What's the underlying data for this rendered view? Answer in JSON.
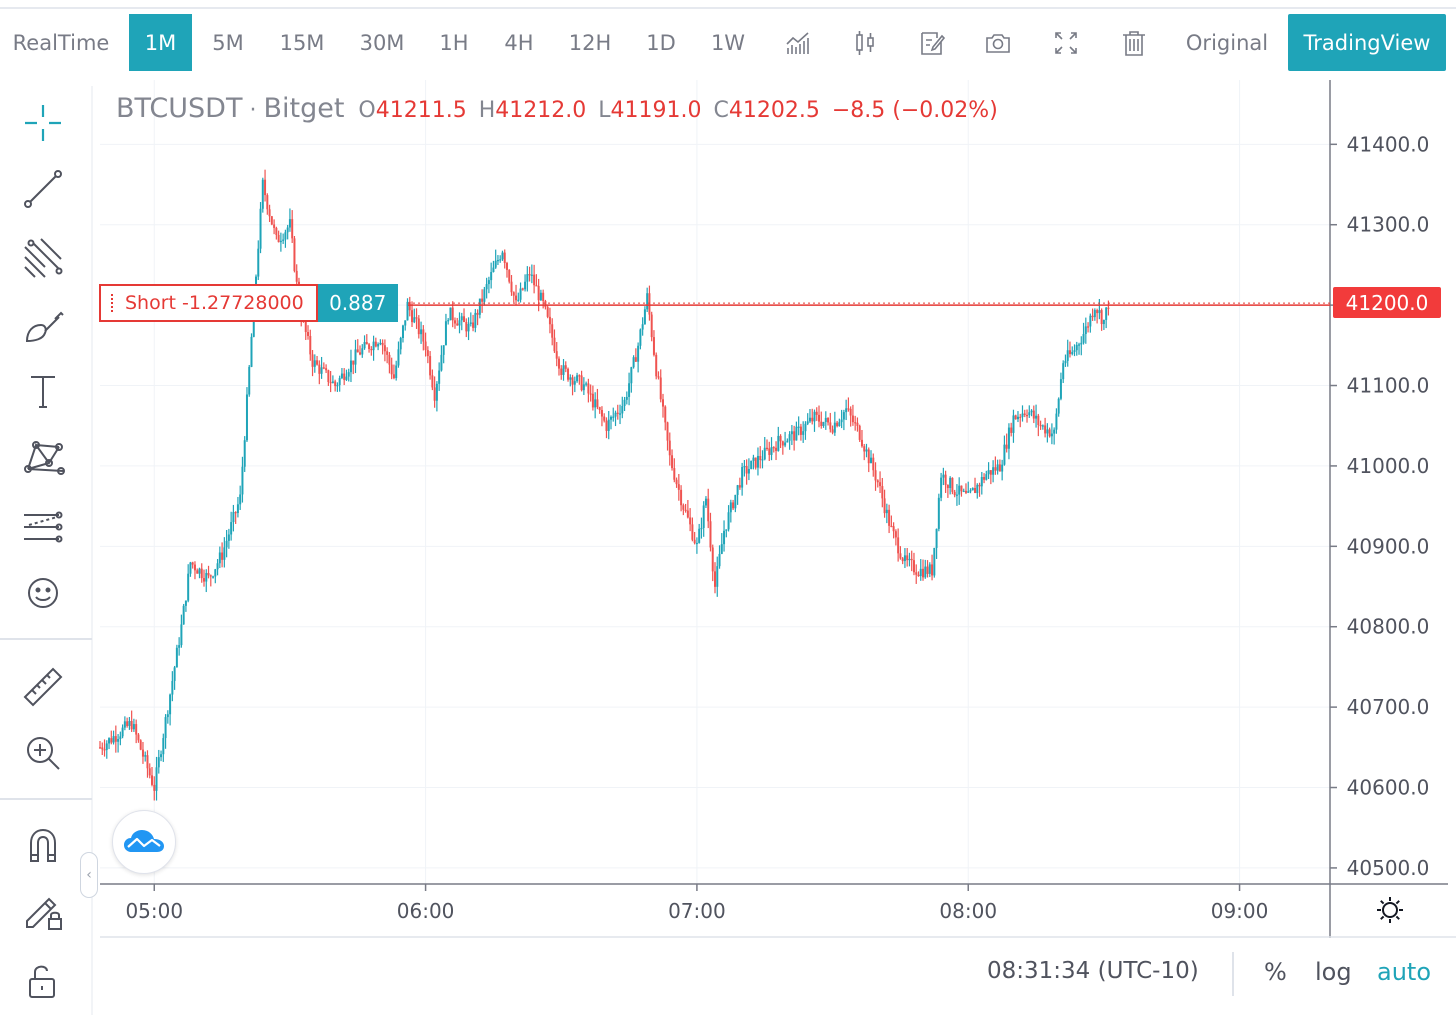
{
  "toolbar": {
    "realtime": "RealTime",
    "intervals": [
      "1M",
      "5M",
      "15M",
      "30M",
      "1H",
      "4H",
      "12H",
      "1D",
      "1W"
    ],
    "active_interval": "1M",
    "original": "Original",
    "tradingview": "TradingView",
    "icons": [
      "indicators-icon",
      "candle-style-icon",
      "drawing-edit-icon",
      "camera-icon",
      "fullscreen-icon",
      "trash-icon"
    ]
  },
  "sidebar": {
    "tools": [
      "crosshair-icon",
      "trend-line-icon",
      "fib-icon",
      "brush-icon",
      "text-icon",
      "pattern-icon",
      "prediction-icon",
      "emoji-icon",
      "ruler-icon",
      "zoom-in-icon",
      "magnet-icon",
      "lock-pencil-icon",
      "unlock-icon"
    ]
  },
  "legend": {
    "symbol": "BTCUSDT",
    "separator": " · ",
    "exchange": "Bitget",
    "o_label": "O",
    "o": "41211.5",
    "h_label": "H",
    "h": "41212.0",
    "l_label": "L",
    "l": "41191.0",
    "c_label": "C",
    "c": "41202.5",
    "change": "−8.5 (−0.02%)"
  },
  "position": {
    "side_label": "Short -1.27728000",
    "value": "0.887",
    "price_tag": "41200.0"
  },
  "colors": {
    "up": "#26a69a",
    "up_alt": "#1fa4b8",
    "down": "#ef5350",
    "accent": "#1fa4b8",
    "position_line": "#e53935"
  },
  "chart_data": {
    "type": "candlestick",
    "symbol": "BTCUSDT",
    "exchange": "Bitget",
    "interval": "1M",
    "ylim": [
      40480,
      41480
    ],
    "y_ticks": [
      "41400.0",
      "41300.0",
      "41200.0",
      "41100.0",
      "41000.0",
      "40900.0",
      "40800.0",
      "40700.0",
      "40600.0",
      "40500.0"
    ],
    "x_ticks": [
      "05:00",
      "06:00",
      "07:00",
      "08:00",
      "09:00"
    ],
    "position_line_price": 41200,
    "series": [
      {
        "time": "04:48",
        "close": 40650
      },
      {
        "time": "04:55",
        "close": 40680
      },
      {
        "time": "05:00",
        "close": 40600
      },
      {
        "time": "05:03",
        "close": 40700
      },
      {
        "time": "05:06",
        "close": 40800
      },
      {
        "time": "05:08",
        "close": 40880
      },
      {
        "time": "05:12",
        "close": 40860
      },
      {
        "time": "05:15",
        "close": 40890
      },
      {
        "time": "05:19",
        "close": 40960
      },
      {
        "time": "05:22",
        "close": 41200
      },
      {
        "time": "05:24",
        "close": 41350
      },
      {
        "time": "05:27",
        "close": 41280
      },
      {
        "time": "05:30",
        "close": 41300
      },
      {
        "time": "05:32",
        "close": 41200
      },
      {
        "time": "05:35",
        "close": 41130
      },
      {
        "time": "05:40",
        "close": 41100
      },
      {
        "time": "05:45",
        "close": 41140
      },
      {
        "time": "05:50",
        "close": 41160
      },
      {
        "time": "05:53",
        "close": 41110
      },
      {
        "time": "05:56",
        "close": 41200
      },
      {
        "time": "06:00",
        "close": 41150
      },
      {
        "time": "06:02",
        "close": 41090
      },
      {
        "time": "06:05",
        "close": 41190
      },
      {
        "time": "06:10",
        "close": 41170
      },
      {
        "time": "06:14",
        "close": 41230
      },
      {
        "time": "06:17",
        "close": 41270
      },
      {
        "time": "06:20",
        "close": 41200
      },
      {
        "time": "06:23",
        "close": 41240
      },
      {
        "time": "06:26",
        "close": 41200
      },
      {
        "time": "06:30",
        "close": 41120
      },
      {
        "time": "06:35",
        "close": 41100
      },
      {
        "time": "06:40",
        "close": 41050
      },
      {
        "time": "06:44",
        "close": 41080
      },
      {
        "time": "06:47",
        "close": 41150
      },
      {
        "time": "06:49",
        "close": 41210
      },
      {
        "time": "06:51",
        "close": 41120
      },
      {
        "time": "06:54",
        "close": 41010
      },
      {
        "time": "06:57",
        "close": 40950
      },
      {
        "time": "07:00",
        "close": 40900
      },
      {
        "time": "07:02",
        "close": 40960
      },
      {
        "time": "07:04",
        "close": 40850
      },
      {
        "time": "07:06",
        "close": 40920
      },
      {
        "time": "07:10",
        "close": 40990
      },
      {
        "time": "07:14",
        "close": 41010
      },
      {
        "time": "07:18",
        "close": 41030
      },
      {
        "time": "07:22",
        "close": 41040
      },
      {
        "time": "07:26",
        "close": 41060
      },
      {
        "time": "07:30",
        "close": 41050
      },
      {
        "time": "07:33",
        "close": 41070
      },
      {
        "time": "07:36",
        "close": 41040
      },
      {
        "time": "07:40",
        "close": 40980
      },
      {
        "time": "07:43",
        "close": 40920
      },
      {
        "time": "07:46",
        "close": 40880
      },
      {
        "time": "07:49",
        "close": 40870
      },
      {
        "time": "07:52",
        "close": 40870
      },
      {
        "time": "07:54",
        "close": 40990
      },
      {
        "time": "07:57",
        "close": 40970
      },
      {
        "time": "08:00",
        "close": 40960
      },
      {
        "time": "08:04",
        "close": 40990
      },
      {
        "time": "08:07",
        "close": 41000
      },
      {
        "time": "08:10",
        "close": 41060
      },
      {
        "time": "08:13",
        "close": 41070
      },
      {
        "time": "08:16",
        "close": 41050
      },
      {
        "time": "08:19",
        "close": 41040
      },
      {
        "time": "08:21",
        "close": 41130
      },
      {
        "time": "08:23",
        "close": 41140
      },
      {
        "time": "08:26",
        "close": 41170
      },
      {
        "time": "08:28",
        "close": 41200
      },
      {
        "time": "08:30",
        "close": 41180
      },
      {
        "time": "08:31",
        "close": 41202.5
      }
    ]
  },
  "bottombar": {
    "time": "08:31:34 (UTC-10)",
    "percent": "%",
    "log": "log",
    "auto": "auto"
  }
}
